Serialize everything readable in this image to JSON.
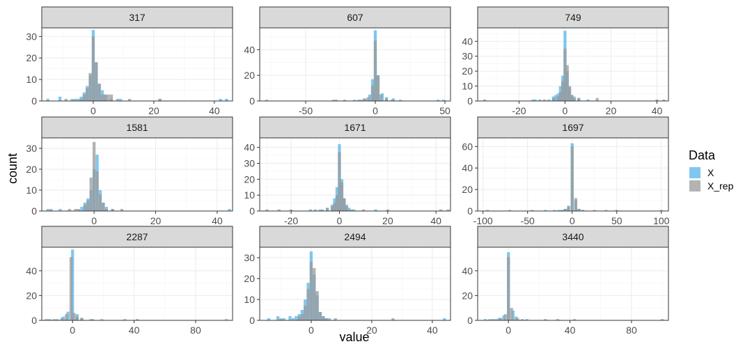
{
  "chart_data": {
    "type": "bar",
    "subtype": "faceted-histogram-overlay",
    "xlabel": "value",
    "ylabel": "count",
    "grid": true,
    "legend": {
      "title": "Data",
      "placement": "right",
      "entries": [
        {
          "name": "X",
          "color": "#56B4E9"
        },
        {
          "name": "X_rep",
          "color": "#999999"
        }
      ]
    },
    "colors": {
      "X": "#56B4E9",
      "X_rep": "#999999",
      "opacity": 0.75
    },
    "facets": [
      {
        "label": "317",
        "xlim": [
          -17,
          46
        ],
        "ylim": [
          0,
          34
        ],
        "xticks": [
          0,
          20,
          40
        ],
        "yticks": [
          0,
          10,
          20,
          30
        ],
        "series": [
          {
            "name": "X",
            "x": [
              -15,
              -11,
              -7,
              -5,
              -4,
              -3,
              -2,
              -1,
              0,
              1,
              2,
              3,
              4,
              6,
              9,
              22,
              42,
              44
            ],
            "values": [
              1,
              2,
              1,
              1,
              2,
              4,
              7,
              12,
              33,
              18,
              8,
              5,
              3,
              1,
              1,
              1,
              1,
              1
            ]
          },
          {
            "name": "X_rep",
            "x": [
              -9,
              -6,
              -4,
              -3,
              -2,
              -1,
              0,
              1,
              2,
              3,
              4,
              5,
              6,
              8,
              12,
              22
            ],
            "values": [
              1,
              1,
              1,
              3,
              6,
              13,
              30,
              18,
              8,
              3,
              3,
              3,
              3,
              1,
              1,
              1
            ]
          }
        ]
      },
      {
        "label": "607",
        "xlim": [
          -83,
          54
        ],
        "ylim": [
          0,
          57
        ],
        "xticks": [
          -50,
          0,
          50
        ],
        "yticks": [
          0,
          20,
          40
        ],
        "series": [
          {
            "name": "X",
            "x": [
              -30,
              -15,
              -10,
              -7,
              -4,
              -2,
              0,
              2,
              5,
              8,
              13,
              18,
              45,
              49
            ],
            "values": [
              1,
              1,
              1,
              2,
              5,
              17,
              55,
              20,
              6,
              3,
              2,
              1,
              1,
              1
            ]
          },
          {
            "name": "X_rep",
            "x": [
              -78,
              -28,
              -22,
              -12,
              -8,
              -5,
              -2,
              0,
              2,
              4,
              8,
              12
            ],
            "values": [
              1,
              1,
              1,
              1,
              2,
              3,
              12,
              47,
              20,
              5,
              2,
              1
            ]
          }
        ]
      },
      {
        "label": "749",
        "xlim": [
          -38,
          45
        ],
        "ylim": [
          0,
          49
        ],
        "xticks": [
          -20,
          0,
          20,
          40
        ],
        "yticks": [
          0,
          10,
          20,
          30,
          40
        ],
        "series": [
          {
            "name": "X",
            "x": [
              -14,
              -13,
              -11,
              -7,
              -5,
              -4,
              -3,
              -2,
              -1,
              0,
              1,
              2,
              3,
              4,
              6,
              10,
              43
            ],
            "values": [
              1,
              1,
              1,
              1,
              3,
              4,
              5,
              10,
              17,
              47,
              20,
              9,
              4,
              3,
              2,
              1,
              1
            ]
          },
          {
            "name": "X_rep",
            "x": [
              -35,
              -9,
              -5,
              -3,
              -2,
              -1,
              0,
              1,
              2,
              3,
              4,
              6,
              14,
              40
            ],
            "values": [
              1,
              1,
              2,
              3,
              6,
              13,
              35,
              24,
              10,
              4,
              2,
              2,
              2,
              1
            ]
          }
        ]
      },
      {
        "label": "1581",
        "xlim": [
          -17,
          45
        ],
        "ylim": [
          0,
          35
        ],
        "xticks": [
          0,
          20,
          40
        ],
        "yticks": [
          0,
          10,
          20,
          30
        ],
        "series": [
          {
            "name": "X",
            "x": [
              -15,
              -11,
              -4,
              -3,
              -2,
              -1,
              0,
              1,
              2,
              3,
              4,
              6,
              44
            ],
            "values": [
              1,
              1,
              2,
              4,
              6,
              10,
              20,
              27,
              10,
              4,
              2,
              1,
              1
            ]
          },
          {
            "name": "X_rep",
            "x": [
              -14,
              -8,
              -6,
              -5,
              -3,
              -2,
              -1,
              0,
              1,
              2,
              3,
              4,
              6,
              9
            ],
            "values": [
              1,
              1,
              1,
              1,
              3,
              5,
              16,
              33,
              19,
              8,
              4,
              1,
              1,
              1
            ]
          }
        ]
      },
      {
        "label": "1671",
        "xlim": [
          -33,
          46
        ],
        "ylim": [
          0,
          46
        ],
        "xticks": [
          -20,
          0,
          20,
          40
        ],
        "yticks": [
          0,
          10,
          20,
          30,
          40
        ],
        "series": [
          {
            "name": "X",
            "x": [
              -10,
              -7,
              -5,
              -3,
              -2,
              -1,
              0,
              1,
              2,
              3,
              4,
              6,
              15,
              45
            ],
            "values": [
              1,
              1,
              2,
              4,
              8,
              15,
              42,
              20,
              8,
              4,
              2,
              1,
              1,
              1
            ]
          },
          {
            "name": "X_rep",
            "x": [
              -30,
              -25,
              -20,
              -12,
              -8,
              -5,
              -3,
              -2,
              -1,
              0,
              1,
              2,
              3,
              5,
              10,
              20,
              42
            ],
            "values": [
              1,
              1,
              1,
              1,
              1,
              2,
              3,
              5,
              10,
              37,
              18,
              8,
              3,
              1,
              1,
              1,
              1
            ]
          }
        ]
      },
      {
        "label": "1697",
        "xlim": [
          -106,
          108
        ],
        "ylim": [
          0,
          68
        ],
        "xticks": [
          -100,
          -50,
          0,
          50,
          100
        ],
        "yticks": [
          0,
          20,
          40,
          60
        ],
        "series": [
          {
            "name": "X",
            "x": [
              -30,
              -15,
              -10,
              -7,
              -4,
              0,
              4,
              7,
              12,
              38
            ],
            "values": [
              1,
              1,
              1,
              2,
              5,
              63,
              10,
              2,
              1,
              1
            ]
          },
          {
            "name": "X_rep",
            "x": [
              -95,
              -70,
              -45,
              -20,
              -12,
              -8,
              -4,
              0,
              4,
              8,
              12,
              25,
              50,
              100
            ],
            "values": [
              1,
              1,
              1,
              1,
              1,
              2,
              4,
              60,
              12,
              2,
              1,
              1,
              1,
              1
            ]
          }
        ]
      },
      {
        "label": "2287",
        "xlim": [
          -20,
          104
        ],
        "ylim": [
          0,
          59
        ],
        "xticks": [
          0,
          40,
          80
        ],
        "yticks": [
          0,
          20,
          40
        ],
        "series": [
          {
            "name": "X",
            "x": [
              -15,
              -10,
              -6,
              -3,
              0,
              3,
              6,
              12,
              19,
              42,
              100
            ],
            "values": [
              1,
              1,
              3,
              7,
              57,
              5,
              2,
              1,
              1,
              1,
              1
            ]
          },
          {
            "name": "X_rep",
            "x": [
              -17,
              -12,
              -7,
              -4,
              -1,
              1,
              3,
              6,
              13,
              34
            ],
            "values": [
              1,
              1,
              2,
              5,
              51,
              6,
              3,
              2,
              1,
              1
            ]
          }
        ]
      },
      {
        "label": "2494",
        "xlim": [
          -17,
          46
        ],
        "ylim": [
          0,
          35
        ],
        "xticks": [
          0,
          20,
          40
        ],
        "yticks": [
          0,
          10,
          20,
          30
        ],
        "series": [
          {
            "name": "X",
            "x": [
              -14,
              -11,
              -9,
              -7,
              -5,
              -4,
              -3,
              -2,
              -1,
              0,
              1,
              2,
              3,
              4,
              5,
              6,
              44
            ],
            "values": [
              1,
              2,
              1,
              2,
              2,
              3,
              5,
              10,
              18,
              33,
              22,
              12,
              4,
              2,
              1,
              1,
              1
            ]
          },
          {
            "name": "X_rep",
            "x": [
              -10,
              -6,
              -4,
              -3,
              -2,
              -1,
              0,
              1,
              2,
              3,
              4,
              5,
              8,
              27
            ],
            "values": [
              1,
              1,
              2,
              3,
              7,
              15,
              28,
              25,
              14,
              4,
              2,
              1,
              1,
              1
            ]
          }
        ]
      },
      {
        "label": "3440",
        "xlim": [
          -20,
          104
        ],
        "ylim": [
          0,
          59
        ],
        "xticks": [
          0,
          40,
          80
        ],
        "yticks": [
          0,
          20,
          40
        ],
        "series": [
          {
            "name": "X",
            "x": [
              -15,
              -10,
              -6,
              -3,
              0,
              3,
              6,
              12,
              43
            ],
            "values": [
              1,
              1,
              2,
              4,
              55,
              8,
              2,
              1,
              1
            ]
          },
          {
            "name": "X_rep",
            "x": [
              -12,
              -8,
              -5,
              -2,
              0,
              2,
              5,
              9,
              24,
              32,
              100
            ],
            "values": [
              1,
              1,
              2,
              5,
              51,
              10,
              3,
              1,
              1,
              1,
              1
            ]
          }
        ]
      }
    ]
  }
}
